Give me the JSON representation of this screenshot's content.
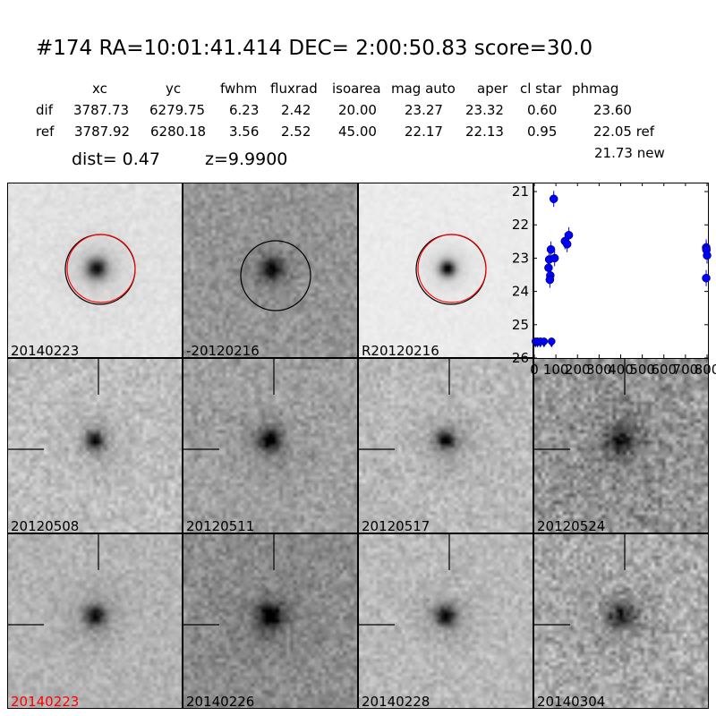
{
  "title": "#174   RA=10:01:41.414 DEC= 2:00:50.83       score=30.0",
  "table": {
    "headers": [
      "xc",
      "yc",
      "fwhm",
      "fluxrad",
      "isoarea",
      "mag auto",
      "aper",
      "cl star",
      "phmag"
    ],
    "rows": [
      {
        "label": "dif",
        "values": [
          "3787.73",
          "6279.75",
          "6.23",
          "2.42",
          "20.00",
          "23.27",
          "23.32",
          "0.60",
          "23.60"
        ]
      },
      {
        "label": "ref",
        "values": [
          "3787.92",
          "6280.18",
          "3.56",
          "2.52",
          "45.00",
          "22.17",
          "22.13",
          "0.95",
          "22.05 ref"
        ]
      }
    ],
    "phmag_new": "21.73 new",
    "dist": "dist=  0.47",
    "z": "z=9.9900"
  },
  "stamps": [
    {
      "label": "20140223",
      "label_color": "#000000"
    },
    {
      "label": "-20120216",
      "label_color": "#000000"
    },
    {
      "label": "R20120216",
      "label_color": "#000000"
    },
    {
      "label": "20120508",
      "label_color": "#000000"
    },
    {
      "label": "20120511",
      "label_color": "#000000"
    },
    {
      "label": "20120517",
      "label_color": "#000000"
    },
    {
      "label": "20120524",
      "label_color": "#000000"
    },
    {
      "label": "20140223",
      "label_color": "#ff0000"
    },
    {
      "label": "20140226",
      "label_color": "#000000"
    },
    {
      "label": "20140228",
      "label_color": "#000000"
    },
    {
      "label": "20140304",
      "label_color": "#000000"
    }
  ],
  "chart_data": {
    "type": "scatter",
    "xlim": [
      0,
      800
    ],
    "ylim": [
      26,
      20.73
    ],
    "y_inverted": true,
    "xticks": [
      "0",
      "100",
      "200",
      "300",
      "400",
      "500",
      "600",
      "700",
      "800"
    ],
    "yticks": [
      "21",
      "22",
      "23",
      "24",
      "25",
      "26"
    ],
    "marker_color": "#0000ff",
    "points": [
      {
        "x": 90,
        "y": 21.22
      },
      {
        "x": 66,
        "y": 23.29
      },
      {
        "x": 69,
        "y": 23.04
      },
      {
        "x": 77,
        "y": 22.74
      },
      {
        "x": 94,
        "y": 23.0
      },
      {
        "x": 74,
        "y": 23.52
      },
      {
        "x": 72,
        "y": 23.65
      },
      {
        "x": 142,
        "y": 22.49
      },
      {
        "x": 152,
        "y": 22.58
      },
      {
        "x": 160,
        "y": 22.31
      },
      {
        "x": 796,
        "y": 22.68
      },
      {
        "x": 797,
        "y": 22.75
      },
      {
        "x": 800,
        "y": 22.92
      },
      {
        "x": 796,
        "y": 23.6
      }
    ],
    "upper_limits": [
      {
        "x": 5,
        "y": 25.5
      },
      {
        "x": 15,
        "y": 25.5
      },
      {
        "x": 28,
        "y": 25.5
      },
      {
        "x": 45,
        "y": 25.5
      },
      {
        "x": 80,
        "y": 25.5
      }
    ]
  }
}
